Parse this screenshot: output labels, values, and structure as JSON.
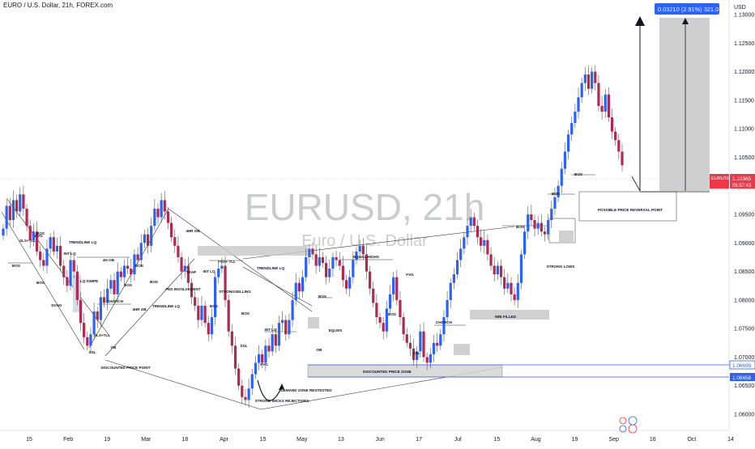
{
  "header": {
    "title": "EURO / U.S. Dollar, 21h, FOREX.com"
  },
  "price_axis": {
    "currency": "USD"
  },
  "watermark": {
    "symbol": "EURUSD, 21h",
    "name": "Euro / U.S. Dollar"
  },
  "last_price": {
    "symbol": "EURUSD",
    "price": "1.10365",
    "countdown": "05:57:43",
    "color": "#f23645"
  },
  "level_tags": [
    {
      "label": "1.06699",
      "color": "#2962ff"
    },
    {
      "label": "1.06658",
      "color": "#2962ff"
    }
  ],
  "measure": {
    "label": "0.03210 (2.91%) 321.0",
    "color": "#2962ff"
  },
  "chart_data": {
    "type": "candlestick",
    "ylim": [
      1.0575,
      1.1375
    ],
    "y_ticks": [
      1.06,
      1.065,
      1.07,
      1.075,
      1.08,
      1.085,
      1.09,
      1.095,
      1.1,
      1.105,
      1.11,
      1.115,
      1.12,
      1.125,
      1.13
    ],
    "y_tick_labels": [
      "1.06000",
      "1.06500",
      "1.07000",
      "1.07500",
      "1.08000",
      "1.08500",
      "1.09000",
      "1.09500",
      "1.10000",
      "1.10500",
      "1.11000",
      "1.11500",
      "1.12000",
      "1.12500",
      "1.13000"
    ],
    "x_ticks": [
      "15",
      "Feb",
      "19",
      "Mar",
      "18",
      "Apr",
      "15",
      "May",
      "13",
      "Jun",
      "17",
      "Jul",
      "15",
      "Aug",
      "19",
      "Sep",
      "16",
      "Oct",
      "14"
    ],
    "series": [
      {
        "values": [
          1.0925,
          1.0965,
          1.094,
          1.0975,
          1.0955,
          1.0985,
          1.096,
          1.093,
          1.0905,
          1.092,
          1.0885,
          1.087,
          1.086,
          1.089,
          1.091,
          1.0885,
          1.0895,
          1.086,
          1.084,
          1.0825,
          1.087,
          1.085,
          1.08,
          1.076,
          1.0735,
          1.072,
          1.074,
          1.078,
          1.0765,
          1.0805,
          1.0795,
          1.082,
          1.0835,
          1.081,
          1.085,
          1.084,
          1.086,
          1.0855,
          1.0845,
          1.088,
          1.087,
          1.09,
          1.0915,
          1.0895,
          1.093,
          1.096,
          1.0945,
          1.0975,
          1.0955,
          1.0935,
          1.091,
          1.0895,
          1.0875,
          1.085,
          1.086,
          1.083,
          1.0805,
          1.079,
          1.0765,
          1.079,
          1.076,
          1.074,
          1.077,
          1.084,
          1.0855,
          1.086,
          1.08,
          1.0745,
          1.072,
          1.068,
          1.065,
          1.063,
          1.0625,
          1.0645,
          1.067,
          1.069,
          1.0705,
          1.069,
          1.072,
          1.071,
          1.074,
          1.072,
          1.076,
          1.0765,
          1.074,
          1.0765,
          1.08,
          1.083,
          1.0815,
          1.084,
          1.0875,
          1.089,
          1.088,
          1.086,
          1.0875,
          1.0865,
          1.084,
          1.0855,
          1.0875,
          1.087,
          1.086,
          1.0835,
          1.082,
          1.084,
          1.087,
          1.0885,
          1.0895,
          1.088,
          1.085,
          1.082,
          1.0795,
          1.077,
          1.076,
          1.0745,
          1.0785,
          1.081,
          1.084,
          1.08,
          1.077,
          1.074,
          1.0725,
          1.0715,
          1.0695,
          1.071,
          1.0745,
          1.07,
          1.069,
          1.0705,
          1.0725,
          1.072,
          1.074,
          1.077,
          1.08,
          1.083,
          1.0845,
          1.087,
          1.089,
          1.091,
          1.093,
          1.0945,
          1.093,
          1.091,
          1.0895,
          1.0905,
          1.088,
          1.086,
          1.0845,
          1.086,
          1.084,
          1.082,
          1.083,
          1.081,
          1.08,
          1.083,
          1.088,
          1.092,
          1.095,
          1.094,
          1.0925,
          1.0935,
          1.092,
          1.0915,
          1.094,
          1.096,
          1.098,
          1.1,
          1.103,
          1.106,
          1.109,
          1.111,
          1.113,
          1.1155,
          1.118,
          1.1195,
          1.117,
          1.12,
          1.118,
          1.114,
          1.113,
          1.116,
          1.112,
          1.1095,
          1.108,
          1.106,
          1.1036
        ]
      }
    ],
    "annotations": [
      "BOS",
      "SLS+TLL",
      "FVG",
      "BOS",
      "BOS",
      "DVNG",
      "INT LQ",
      "TRENDLINE LQ",
      "LQ SWIPE",
      "4H OB",
      "CHORCH",
      "BOS",
      "SLS+TLL",
      "OB",
      "SSL",
      "DISCOUNTED PRICE POINT",
      "BOS",
      "4HR OB",
      "TRENDLINE LQ",
      "BOS",
      "4HR OB",
      "TRAP",
      "FED INVOLVEMENT",
      "INT LQ",
      "FVG+ TLL",
      "STRONGSELLING",
      "BOS",
      "SSL",
      "TRENDLINE LQ",
      "BOS",
      "INT LQ",
      "FVG",
      "DEMAND ZONE RESTESTED",
      "STRONG WICKS REJECTIONS",
      "BOS",
      "OB",
      "EQLWS",
      "EQUAL HIGHS",
      "BOS",
      "FVG",
      "SSL",
      "CHORCH",
      "DISCOUNTED PRICE ZONE",
      "IMB FILLED",
      "BOS",
      "STRONG LOWS",
      "BOS",
      "BOS",
      "POSSIBLE PRICE REVERSAL POINT"
    ]
  }
}
